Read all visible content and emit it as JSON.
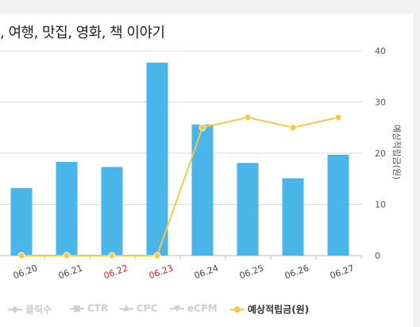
{
  "title": ", 여행, 맛집, 영화, 책 이야기",
  "legend": [
    {
      "label": "클릭수",
      "active": false,
      "marker": "diamond",
      "color": "#d0d0d0"
    },
    {
      "label": "CTR",
      "active": false,
      "marker": "square",
      "color": "#d0d0d0"
    },
    {
      "label": "CPC",
      "active": false,
      "marker": "triangle",
      "color": "#d0d0d0"
    },
    {
      "label": "eCPM",
      "active": false,
      "marker": "triangle-down",
      "color": "#d0d0d0"
    },
    {
      "label": "예상적립금(원)",
      "active": true,
      "marker": "circle",
      "color": "#f5c842"
    }
  ],
  "chart_data": {
    "type": "bar",
    "categories": [
      "06.20",
      "06.21",
      "06.22",
      "06.23",
      "06.24",
      "06.25",
      "06.26",
      "06.27"
    ],
    "category_colors": [
      "#444444",
      "#444444",
      "#e02020",
      "#e02020",
      "#444444",
      "#444444",
      "#444444",
      "#444444"
    ],
    "bar_color": "#4ab5e8",
    "line_color": "#f5c842",
    "series": [
      {
        "type": "bar",
        "values": [
          13.2,
          18.3,
          17.3,
          37.7,
          25.6,
          18.1,
          15.1,
          19.7
        ]
      },
      {
        "type": "line",
        "name": "예상적립금(원)",
        "values": [
          0,
          0,
          0,
          0,
          25,
          27,
          25,
          27
        ]
      }
    ],
    "ylabel": "예상적립금(원)",
    "yticks": [
      0,
      10,
      20,
      30,
      40
    ],
    "ylim": [
      0,
      40
    ]
  }
}
